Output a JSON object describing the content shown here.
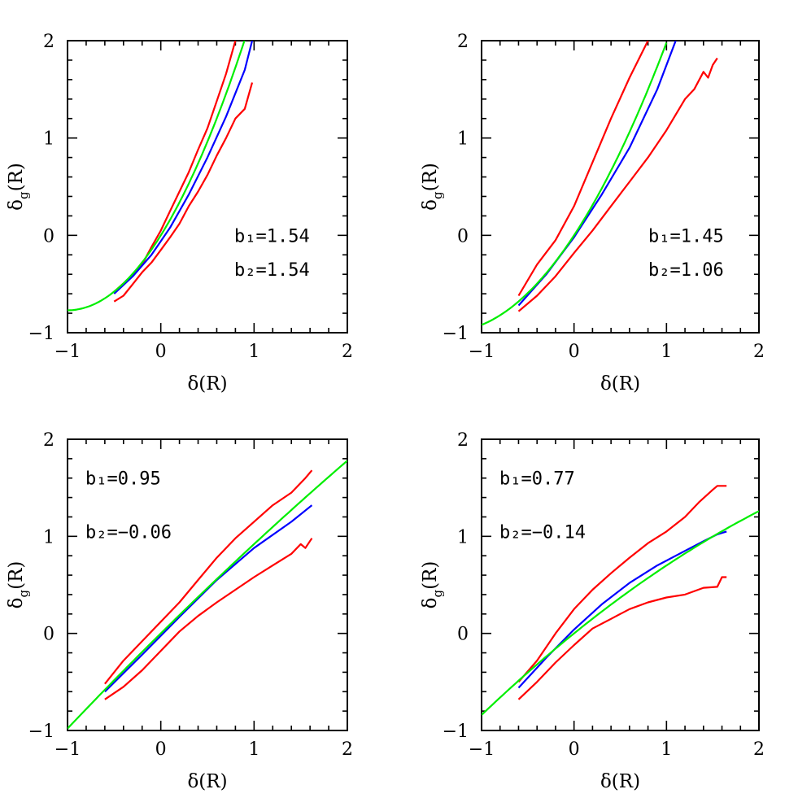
{
  "chart_data": [
    {
      "type": "line",
      "xlabel": "δ(R)",
      "ylabel": "δ_g(R)",
      "xlim": [
        -1,
        2
      ],
      "ylim": [
        -1,
        2
      ],
      "xticks": [
        "−1",
        "0",
        "1",
        "2"
      ],
      "yticks": [
        "−1",
        "0",
        "1",
        "2"
      ],
      "annotation": {
        "b1": "b₁=1.54",
        "b2": "b₂=1.54",
        "placement": "lower-right"
      },
      "series": [
        {
          "color": "#ff0000",
          "x": [
            -0.5,
            -0.35,
            -0.2,
            -0.1,
            0,
            0.1,
            0.2,
            0.3,
            0.4,
            0.5,
            0.6,
            0.7,
            0.8
          ],
          "y": [
            -0.58,
            -0.45,
            -0.3,
            -0.12,
            0.05,
            0.25,
            0.45,
            0.65,
            0.88,
            1.1,
            1.38,
            1.66,
            2.0
          ]
        },
        {
          "color": "#ff0000",
          "x": [
            -0.5,
            -0.4,
            -0.3,
            -0.2,
            -0.1,
            0,
            0.1,
            0.2,
            0.3,
            0.4,
            0.5,
            0.6,
            0.7,
            0.8,
            0.9,
            0.98
          ],
          "y": [
            -0.68,
            -0.62,
            -0.5,
            -0.38,
            -0.28,
            -0.15,
            -0.02,
            0.12,
            0.3,
            0.45,
            0.62,
            0.82,
            1.0,
            1.2,
            1.3,
            1.57
          ]
        },
        {
          "color": "#0000ff",
          "x": [
            -0.5,
            -0.3,
            -0.1,
            0,
            0.1,
            0.3,
            0.5,
            0.7,
            0.9,
            0.98
          ],
          "y": [
            -0.6,
            -0.42,
            -0.2,
            -0.06,
            0.08,
            0.42,
            0.8,
            1.22,
            1.7,
            2.0
          ]
        },
        {
          "color": "#00ee00",
          "fn": "poly",
          "b1": 1.54,
          "b2": 1.54,
          "xrange": [
            -1,
            0.93
          ]
        }
      ]
    },
    {
      "type": "line",
      "xlabel": "δ(R)",
      "ylabel": "δ_g(R)",
      "xlim": [
        -1,
        2
      ],
      "ylim": [
        -1,
        2
      ],
      "xticks": [
        "−1",
        "0",
        "1",
        "2"
      ],
      "yticks": [
        "−1",
        "0",
        "1",
        "2"
      ],
      "annotation": {
        "b1": "b₁=1.45",
        "b2": "b₂=1.06",
        "placement": "lower-right"
      },
      "series": [
        {
          "color": "#ff0000",
          "x": [
            -0.6,
            -0.4,
            -0.2,
            0,
            0.2,
            0.4,
            0.6,
            0.8
          ],
          "y": [
            -0.62,
            -0.3,
            -0.05,
            0.3,
            0.75,
            1.2,
            1.62,
            2.0
          ]
        },
        {
          "color": "#ff0000",
          "x": [
            -0.6,
            -0.4,
            -0.2,
            0,
            0.2,
            0.4,
            0.6,
            0.8,
            1.0,
            1.2,
            1.3,
            1.4,
            1.45,
            1.5,
            1.55
          ],
          "y": [
            -0.78,
            -0.62,
            -0.42,
            -0.18,
            0.05,
            0.3,
            0.55,
            0.8,
            1.08,
            1.4,
            1.5,
            1.68,
            1.62,
            1.75,
            1.82
          ]
        },
        {
          "color": "#0000ff",
          "x": [
            -0.6,
            -0.3,
            0,
            0.3,
            0.6,
            0.9,
            1.1
          ],
          "y": [
            -0.72,
            -0.4,
            -0.02,
            0.42,
            0.9,
            1.5,
            2.0
          ]
        },
        {
          "color": "#00ee00",
          "fn": "poly",
          "b1": 1.45,
          "b2": 1.06,
          "xrange": [
            -1,
            1.0
          ]
        }
      ]
    },
    {
      "type": "line",
      "xlabel": "δ(R)",
      "ylabel": "δ_g(R)",
      "xlim": [
        -1,
        2
      ],
      "ylim": [
        -1,
        2
      ],
      "xticks": [
        "−1",
        "0",
        "1",
        "2"
      ],
      "yticks": [
        "−1",
        "0",
        "1",
        "2"
      ],
      "annotation": {
        "b1": "b₁=0.95",
        "b2": "b₂=−0.06",
        "placement": "upper-left"
      },
      "series": [
        {
          "color": "#ff0000",
          "x": [
            -0.6,
            -0.4,
            -0.2,
            0,
            0.2,
            0.4,
            0.6,
            0.8,
            1.0,
            1.2,
            1.4,
            1.55,
            1.62
          ],
          "y": [
            -0.52,
            -0.28,
            -0.08,
            0.12,
            0.32,
            0.55,
            0.78,
            0.98,
            1.15,
            1.32,
            1.45,
            1.6,
            1.68
          ]
        },
        {
          "color": "#ff0000",
          "x": [
            -0.6,
            -0.4,
            -0.2,
            0,
            0.2,
            0.4,
            0.6,
            0.8,
            1.0,
            1.2,
            1.4,
            1.5,
            1.55,
            1.62
          ],
          "y": [
            -0.68,
            -0.55,
            -0.38,
            -0.18,
            0.02,
            0.18,
            0.32,
            0.45,
            0.58,
            0.7,
            0.82,
            0.92,
            0.88,
            0.98
          ]
        },
        {
          "color": "#0000ff",
          "x": [
            -0.6,
            -0.2,
            0.2,
            0.6,
            1.0,
            1.4,
            1.62
          ],
          "y": [
            -0.6,
            -0.22,
            0.17,
            0.55,
            0.88,
            1.15,
            1.32
          ]
        },
        {
          "color": "#00ee00",
          "fn": "poly",
          "b1": 0.95,
          "b2": -0.06,
          "xrange": [
            -1,
            2
          ]
        }
      ]
    },
    {
      "type": "line",
      "xlabel": "δ(R)",
      "ylabel": "δ_g(R)",
      "xlim": [
        -1,
        2
      ],
      "ylim": [
        -1,
        2
      ],
      "xticks": [
        "−1",
        "0",
        "1",
        "2"
      ],
      "yticks": [
        "−1",
        "0",
        "1",
        "2"
      ],
      "annotation": {
        "b1": "b₁=0.77",
        "b2": "b₂=−0.14",
        "placement": "upper-left"
      },
      "series": [
        {
          "color": "#ff0000",
          "x": [
            -0.6,
            -0.4,
            -0.2,
            0,
            0.2,
            0.4,
            0.6,
            0.8,
            1.0,
            1.2,
            1.35,
            1.5,
            1.55,
            1.65
          ],
          "y": [
            -0.5,
            -0.28,
            0.0,
            0.25,
            0.45,
            0.62,
            0.78,
            0.93,
            1.05,
            1.2,
            1.35,
            1.48,
            1.52,
            1.52
          ]
        },
        {
          "color": "#ff0000",
          "x": [
            -0.6,
            -0.4,
            -0.2,
            0,
            0.2,
            0.4,
            0.6,
            0.8,
            1.0,
            1.2,
            1.4,
            1.55,
            1.6,
            1.65
          ],
          "y": [
            -0.68,
            -0.5,
            -0.3,
            -0.12,
            0.05,
            0.15,
            0.25,
            0.32,
            0.37,
            0.4,
            0.47,
            0.48,
            0.58,
            0.58
          ]
        },
        {
          "color": "#0000ff",
          "x": [
            -0.6,
            -0.3,
            0,
            0.3,
            0.6,
            0.9,
            1.2,
            1.4,
            1.55,
            1.65
          ],
          "y": [
            -0.56,
            -0.25,
            0.04,
            0.3,
            0.52,
            0.7,
            0.85,
            0.95,
            1.02,
            1.05
          ]
        },
        {
          "color": "#00ee00",
          "fn": "poly",
          "b1": 0.77,
          "b2": -0.14,
          "xrange": [
            -1,
            2
          ]
        }
      ]
    }
  ]
}
